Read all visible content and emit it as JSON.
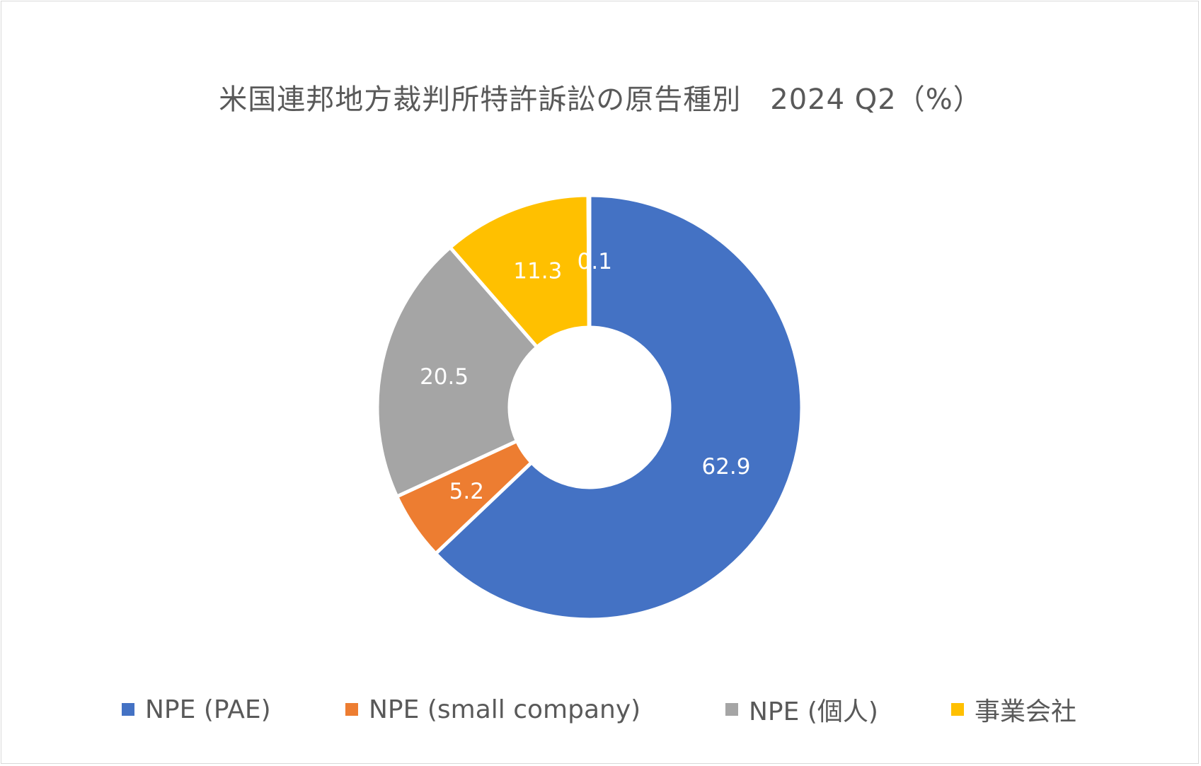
{
  "chart_data": {
    "type": "pie",
    "donut": true,
    "title": "米国連邦地方裁判所特許訴訟の原告種別　2024 Q2（%）",
    "legend_position": "bottom",
    "series": [
      {
        "name": "NPE (PAE)",
        "value": 62.9,
        "label": "62.9",
        "color": "#4472c4"
      },
      {
        "name": "NPE (small company)",
        "value": 5.2,
        "label": "5.2",
        "color": "#ed7d31"
      },
      {
        "name": "NPE (個人)",
        "value": 20.5,
        "label": "20.5",
        "color": "#a5a5a5"
      },
      {
        "name": "事業会社",
        "value": 11.3,
        "label": "11.3",
        "color": "#ffc000"
      },
      {
        "name": "",
        "value": 0.1,
        "label": "0.1",
        "color": "#5b9bd5"
      }
    ]
  }
}
